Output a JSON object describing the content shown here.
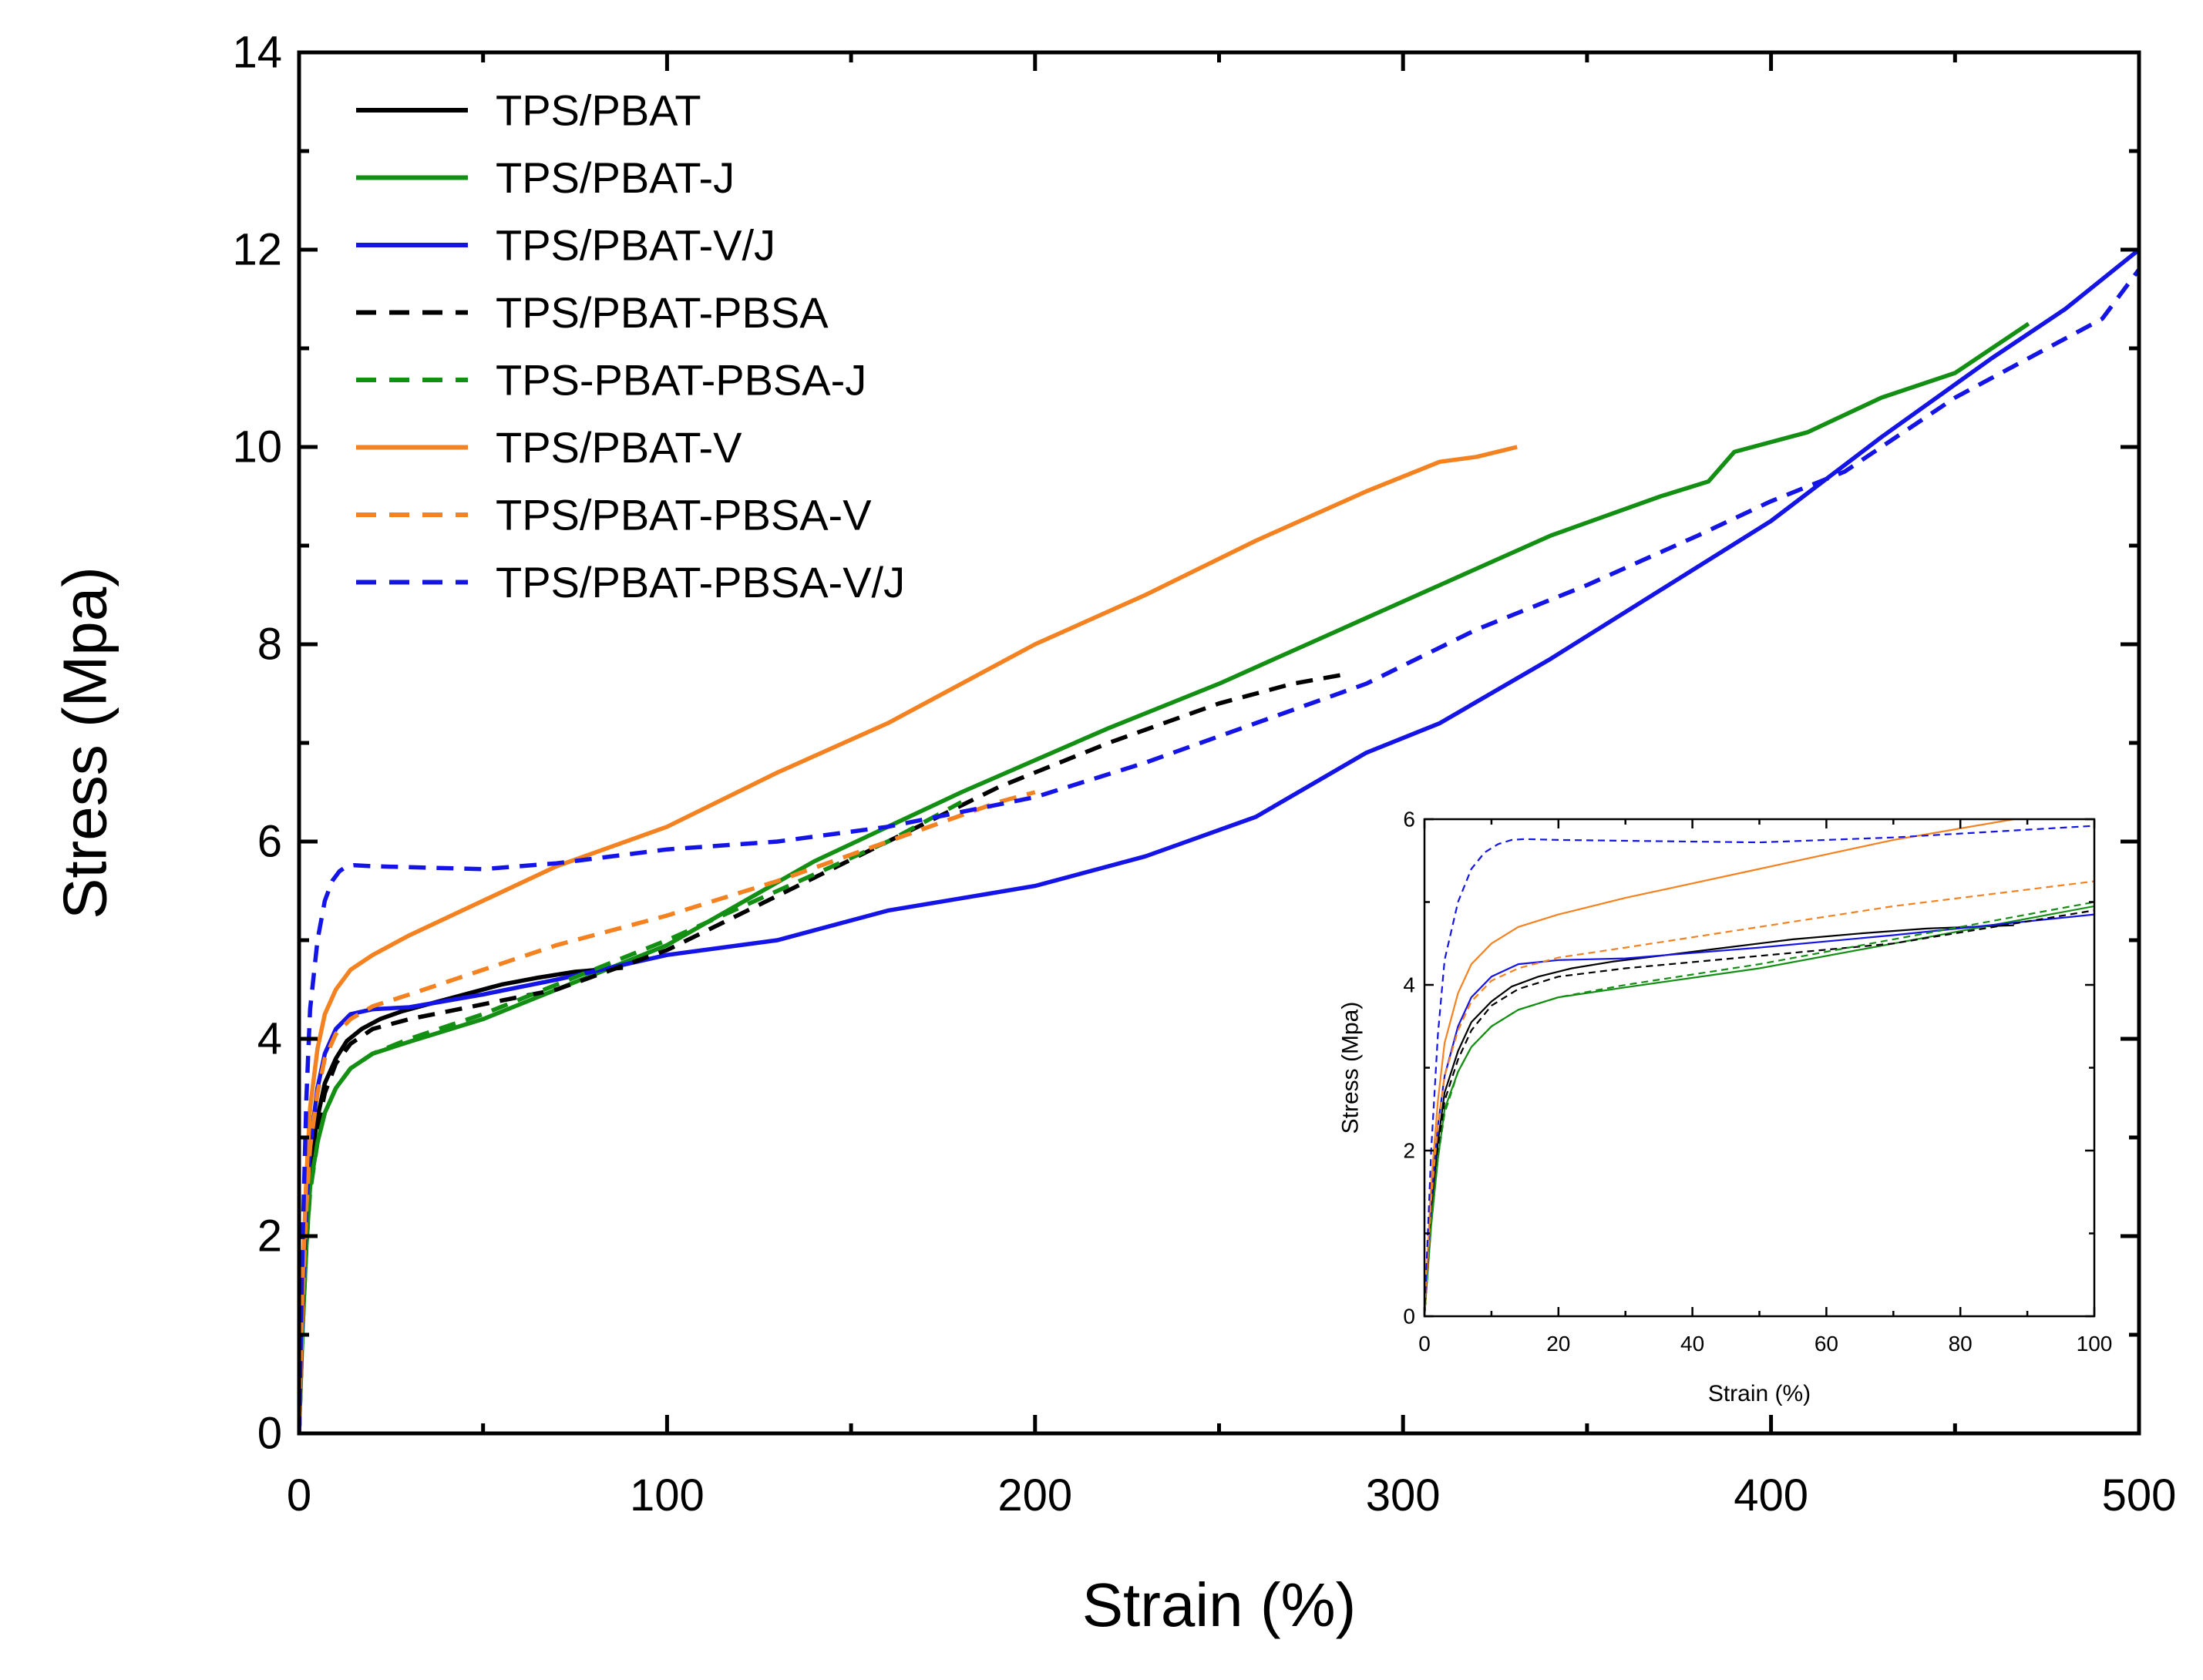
{
  "chart_data": [
    {
      "id": "main",
      "type": "line",
      "title": "",
      "xlabel": "Strain (%)",
      "ylabel": "Stress (Mpa)",
      "xlim": [
        0,
        500
      ],
      "ylim": [
        0,
        14
      ],
      "xticks": [
        0,
        100,
        200,
        300,
        400,
        500
      ],
      "yticks": [
        0,
        2,
        4,
        6,
        8,
        10,
        12,
        14
      ],
      "legend": "top-left",
      "series": [
        {
          "name": "TPS/PBAT",
          "color": "#000000",
          "style": "solid",
          "x": [
            0,
            1,
            2,
            3,
            5,
            7,
            10,
            13,
            17,
            22,
            28,
            35,
            45,
            55,
            65,
            75,
            88
          ],
          "y": [
            0,
            1.3,
            2.1,
            2.7,
            3.2,
            3.55,
            3.8,
            3.98,
            4.1,
            4.2,
            4.28,
            4.35,
            4.45,
            4.55,
            4.62,
            4.68,
            4.72
          ]
        },
        {
          "name": "TPS/PBAT-J",
          "color": "#138f13",
          "style": "solid",
          "x": [
            0,
            1,
            2,
            3,
            5,
            7,
            10,
            14,
            20,
            30,
            50,
            70,
            100,
            140,
            180,
            220,
            250,
            280,
            310,
            340,
            370,
            383,
            390,
            410,
            430,
            450,
            470
          ],
          "y": [
            0,
            1.1,
            1.9,
            2.5,
            2.95,
            3.25,
            3.5,
            3.7,
            3.85,
            3.97,
            4.2,
            4.5,
            4.95,
            5.8,
            6.5,
            7.15,
            7.6,
            8.1,
            8.6,
            9.1,
            9.5,
            9.65,
            9.95,
            10.15,
            10.5,
            10.75,
            11.25
          ]
        },
        {
          "name": "TPS/PBAT-V/J",
          "color": "#1414e6",
          "style": "solid",
          "x": [
            0,
            1,
            2,
            3,
            5,
            7,
            10,
            14,
            20,
            30,
            50,
            70,
            100,
            130,
            160,
            200,
            230,
            260,
            290,
            310,
            340,
            370,
            400,
            430,
            460,
            480,
            500
          ],
          "y": [
            0,
            1.4,
            2.3,
            2.9,
            3.5,
            3.85,
            4.1,
            4.25,
            4.3,
            4.32,
            4.45,
            4.6,
            4.85,
            5.0,
            5.3,
            5.55,
            5.85,
            6.25,
            6.9,
            7.2,
            7.85,
            8.55,
            9.25,
            10.1,
            10.9,
            11.4,
            12.0
          ]
        },
        {
          "name": "TPS/PBAT-PBSA",
          "color": "#000000",
          "style": "dashed",
          "x": [
            0,
            1,
            2,
            3,
            5,
            7,
            10,
            14,
            20,
            30,
            50,
            70,
            100,
            130,
            160,
            190,
            220,
            250,
            270,
            285
          ],
          "y": [
            0,
            1.2,
            2.0,
            2.6,
            3.1,
            3.45,
            3.75,
            3.95,
            4.1,
            4.2,
            4.35,
            4.5,
            4.9,
            5.45,
            6.0,
            6.55,
            7.0,
            7.4,
            7.6,
            7.7
          ]
        },
        {
          "name": "TPS-PBAT-PBSA-J",
          "color": "#138f13",
          "style": "dashed",
          "x": [
            0,
            1,
            2,
            3,
            5,
            7,
            10,
            14,
            20,
            30,
            50,
            70,
            100,
            130,
            160,
            180
          ],
          "y": [
            0,
            1.1,
            1.9,
            2.45,
            2.95,
            3.25,
            3.5,
            3.7,
            3.85,
            4.0,
            4.25,
            4.55,
            5.0,
            5.5,
            6.0,
            6.4
          ]
        },
        {
          "name": "TPS/PBAT-V",
          "color": "#f58220",
          "style": "solid",
          "x": [
            0,
            1,
            2,
            3,
            5,
            7,
            10,
            14,
            20,
            30,
            50,
            70,
            100,
            130,
            160,
            200,
            230,
            260,
            290,
            310,
            320,
            331
          ],
          "y": [
            0,
            1.6,
            2.6,
            3.3,
            3.9,
            4.25,
            4.5,
            4.7,
            4.85,
            5.05,
            5.4,
            5.75,
            6.15,
            6.7,
            7.2,
            8.0,
            8.5,
            9.05,
            9.55,
            9.85,
            9.9,
            10.0
          ]
        },
        {
          "name": "TPS/PBAT-PBSA-V",
          "color": "#f58220",
          "style": "dashed",
          "x": [
            0,
            1,
            2,
            3,
            5,
            7,
            10,
            14,
            20,
            30,
            50,
            70,
            100,
            130,
            160,
            190,
            200
          ],
          "y": [
            0,
            1.4,
            2.3,
            2.9,
            3.45,
            3.8,
            4.05,
            4.2,
            4.33,
            4.45,
            4.7,
            4.95,
            5.25,
            5.6,
            6.0,
            6.4,
            6.5
          ]
        },
        {
          "name": "TPS/PBAT-PBSA-V/J",
          "color": "#1414e6",
          "style": "dashed",
          "x": [
            0,
            1,
            2,
            3,
            5,
            7,
            9,
            11,
            13,
            15,
            20,
            30,
            50,
            70,
            100,
            130,
            160,
            200,
            230,
            260,
            290,
            320,
            350,
            380,
            400,
            420,
            450,
            470,
            490,
            500
          ],
          "y": [
            0,
            2.0,
            3.4,
            4.3,
            5.0,
            5.4,
            5.6,
            5.7,
            5.75,
            5.76,
            5.75,
            5.74,
            5.72,
            5.78,
            5.92,
            6.0,
            6.15,
            6.45,
            6.8,
            7.2,
            7.6,
            8.15,
            8.6,
            9.1,
            9.45,
            9.75,
            10.5,
            10.9,
            11.3,
            11.8
          ]
        }
      ]
    },
    {
      "id": "inset",
      "type": "line",
      "title": "",
      "xlabel": "Strain (%)",
      "ylabel": "Stress (Mpa)",
      "xlim": [
        0,
        100
      ],
      "ylim": [
        0,
        6
      ],
      "xticks": [
        0,
        20,
        40,
        60,
        80,
        100
      ],
      "yticks": [
        0,
        2,
        4,
        6
      ],
      "legend": "none",
      "series": [
        {
          "name": "TPS/PBAT",
          "color": "#000000",
          "style": "solid",
          "x": [
            0,
            1,
            2,
            3,
            5,
            7,
            10,
            13,
            17,
            22,
            28,
            35,
            45,
            55,
            65,
            75,
            88
          ],
          "y": [
            0,
            1.3,
            2.1,
            2.7,
            3.2,
            3.55,
            3.8,
            3.98,
            4.1,
            4.2,
            4.28,
            4.35,
            4.45,
            4.55,
            4.62,
            4.68,
            4.72
          ]
        },
        {
          "name": "TPS/PBAT-J",
          "color": "#138f13",
          "style": "solid",
          "x": [
            0,
            1,
            2,
            3,
            5,
            7,
            10,
            14,
            20,
            30,
            50,
            70,
            100
          ],
          "y": [
            0,
            1.1,
            1.9,
            2.5,
            2.95,
            3.25,
            3.5,
            3.7,
            3.85,
            3.97,
            4.2,
            4.5,
            4.95
          ]
        },
        {
          "name": "TPS/PBAT-V/J",
          "color": "#1414e6",
          "style": "solid",
          "x": [
            0,
            1,
            2,
            3,
            5,
            7,
            10,
            14,
            20,
            30,
            50,
            70,
            100
          ],
          "y": [
            0,
            1.4,
            2.3,
            2.9,
            3.5,
            3.85,
            4.1,
            4.25,
            4.3,
            4.32,
            4.45,
            4.6,
            4.85
          ]
        },
        {
          "name": "TPS/PBAT-PBSA",
          "color": "#000000",
          "style": "dashed",
          "x": [
            0,
            1,
            2,
            3,
            5,
            7,
            10,
            14,
            20,
            30,
            50,
            70,
            100
          ],
          "y": [
            0,
            1.2,
            2.0,
            2.6,
            3.1,
            3.45,
            3.75,
            3.95,
            4.1,
            4.2,
            4.35,
            4.5,
            4.9
          ]
        },
        {
          "name": "TPS-PBAT-PBSA-J",
          "color": "#138f13",
          "style": "dashed",
          "x": [
            0,
            1,
            2,
            3,
            5,
            7,
            10,
            14,
            20,
            30,
            50,
            70,
            100
          ],
          "y": [
            0,
            1.1,
            1.9,
            2.45,
            2.95,
            3.25,
            3.5,
            3.7,
            3.85,
            4.0,
            4.25,
            4.55,
            5.0
          ]
        },
        {
          "name": "TPS/PBAT-V",
          "color": "#f58220",
          "style": "solid",
          "x": [
            0,
            1,
            2,
            3,
            5,
            7,
            10,
            14,
            20,
            30,
            50,
            70,
            88
          ],
          "y": [
            0,
            1.6,
            2.6,
            3.3,
            3.9,
            4.25,
            4.5,
            4.7,
            4.85,
            5.05,
            5.4,
            5.75,
            6.0
          ]
        },
        {
          "name": "TPS/PBAT-PBSA-V",
          "color": "#f58220",
          "style": "dashed",
          "x": [
            0,
            1,
            2,
            3,
            5,
            7,
            10,
            14,
            20,
            30,
            50,
            70,
            100
          ],
          "y": [
            0,
            1.4,
            2.3,
            2.9,
            3.45,
            3.8,
            4.05,
            4.2,
            4.33,
            4.45,
            4.7,
            4.95,
            5.25
          ]
        },
        {
          "name": "TPS/PBAT-PBSA-V/J",
          "color": "#1414e6",
          "style": "dashed",
          "x": [
            0,
            1,
            2,
            3,
            5,
            7,
            9,
            11,
            13,
            15,
            20,
            30,
            50,
            70,
            100
          ],
          "y": [
            0,
            2.0,
            3.4,
            4.3,
            5.0,
            5.4,
            5.6,
            5.7,
            5.75,
            5.76,
            5.75,
            5.74,
            5.72,
            5.78,
            5.92
          ]
        }
      ]
    }
  ]
}
